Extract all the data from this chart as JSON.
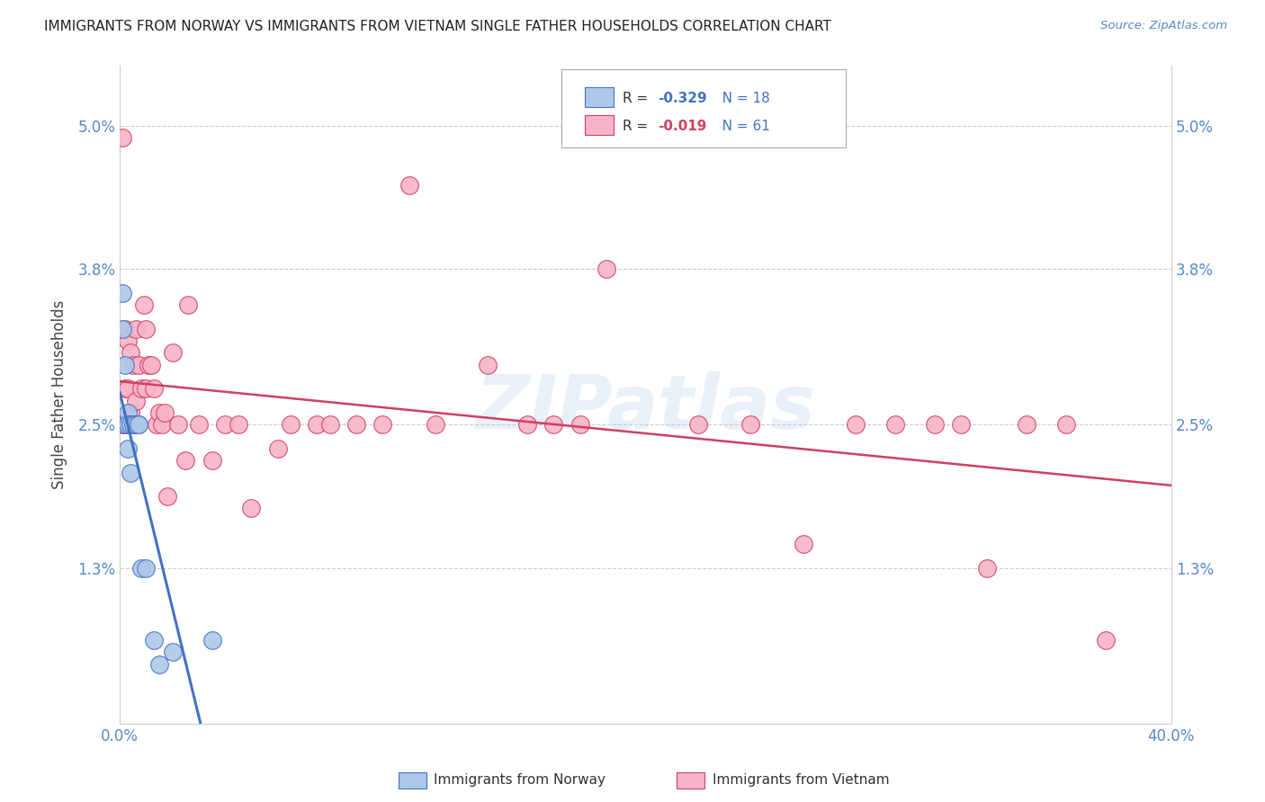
{
  "title": "IMMIGRANTS FROM NORWAY VS IMMIGRANTS FROM VIETNAM SINGLE FATHER HOUSEHOLDS CORRELATION CHART",
  "source": "Source: ZipAtlas.com",
  "ylabel": "Single Father Households",
  "xlim": [
    0.0,
    0.4
  ],
  "ylim": [
    0.0,
    0.055
  ],
  "norway_R": -0.329,
  "norway_N": 18,
  "vietnam_R": -0.019,
  "vietnam_N": 61,
  "norway_color": "#adc8e8",
  "vietnam_color": "#f8b4c8",
  "norway_line_color": "#4472C4",
  "vietnam_line_color": "#d04060",
  "norway_x": [
    0.001,
    0.001,
    0.002,
    0.002,
    0.003,
    0.003,
    0.003,
    0.004,
    0.004,
    0.005,
    0.006,
    0.007,
    0.008,
    0.01,
    0.013,
    0.015,
    0.02,
    0.035
  ],
  "norway_y": [
    0.036,
    0.033,
    0.03,
    0.025,
    0.026,
    0.025,
    0.023,
    0.025,
    0.021,
    0.025,
    0.025,
    0.025,
    0.013,
    0.013,
    0.007,
    0.005,
    0.006,
    0.007
  ],
  "vietnam_x": [
    0.001,
    0.001,
    0.002,
    0.002,
    0.002,
    0.003,
    0.003,
    0.003,
    0.004,
    0.004,
    0.005,
    0.005,
    0.006,
    0.006,
    0.007,
    0.007,
    0.008,
    0.009,
    0.01,
    0.01,
    0.011,
    0.012,
    0.013,
    0.014,
    0.015,
    0.016,
    0.017,
    0.018,
    0.02,
    0.022,
    0.025,
    0.026,
    0.03,
    0.035,
    0.04,
    0.045,
    0.05,
    0.06,
    0.065,
    0.075,
    0.08,
    0.09,
    0.1,
    0.11,
    0.12,
    0.14,
    0.155,
    0.165,
    0.175,
    0.185,
    0.22,
    0.24,
    0.26,
    0.28,
    0.295,
    0.31,
    0.32,
    0.33,
    0.345,
    0.36,
    0.375
  ],
  "vietnam_y": [
    0.049,
    0.025,
    0.033,
    0.028,
    0.025,
    0.032,
    0.028,
    0.025,
    0.031,
    0.026,
    0.03,
    0.025,
    0.033,
    0.027,
    0.03,
    0.025,
    0.028,
    0.035,
    0.033,
    0.028,
    0.03,
    0.03,
    0.028,
    0.025,
    0.026,
    0.025,
    0.026,
    0.019,
    0.031,
    0.025,
    0.022,
    0.035,
    0.025,
    0.022,
    0.025,
    0.025,
    0.018,
    0.023,
    0.025,
    0.025,
    0.025,
    0.025,
    0.025,
    0.045,
    0.025,
    0.03,
    0.025,
    0.025,
    0.025,
    0.038,
    0.025,
    0.025,
    0.015,
    0.025,
    0.025,
    0.025,
    0.025,
    0.013,
    0.025,
    0.025,
    0.007
  ],
  "watermark": "ZIPatlas",
  "background_color": "#ffffff",
  "grid_color": "#cccccc"
}
